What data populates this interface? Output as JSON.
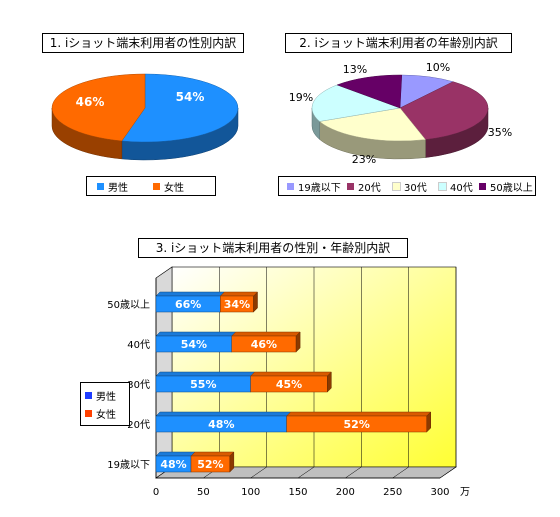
{
  "chart_data": [
    {
      "type": "pie",
      "title": "1. iショット端末利用者の性別内訳",
      "colors": {
        "male": "#1e90ff",
        "female": "#ff6a00"
      },
      "slices": [
        {
          "name": "男性",
          "value": 54,
          "label": "54%"
        },
        {
          "name": "女性",
          "value": 46,
          "label": "46%"
        }
      ],
      "legend": [
        "男性",
        "女性"
      ]
    },
    {
      "type": "pie",
      "title": "2. iショット端末利用者の年齢別内訳",
      "slices": [
        {
          "name": "19歳以下",
          "value": 10,
          "label": "10%",
          "color": "#9999ff"
        },
        {
          "name": "20代",
          "value": 35,
          "label": "35%",
          "color": "#993366"
        },
        {
          "name": "30代",
          "value": 23,
          "label": "23%",
          "color": "#ffffcc"
        },
        {
          "name": "40代",
          "value": 19,
          "label": "19%",
          "color": "#ccffff"
        },
        {
          "name": "50歳以上",
          "value": 13,
          "label": "13%",
          "color": "#660066"
        }
      ],
      "legend": [
        "19歳以下",
        "20代",
        "30代",
        "40代",
        "50歳以上"
      ]
    },
    {
      "type": "bar",
      "orientation": "horizontal",
      "stacked": true,
      "title": "3. iショット端末利用者の性別・年齢別内訳",
      "categories": [
        "50歳以上",
        "40代",
        "30代",
        "20代",
        "19歳以下"
      ],
      "series": [
        {
          "name": "男性",
          "values": [
            68,
            80,
            100,
            138,
            37
          ],
          "labels": [
            "66%",
            "54%",
            "55%",
            "48%",
            "48%"
          ],
          "color": "#1e90ff"
        },
        {
          "name": "女性",
          "values": [
            35,
            68,
            81,
            148,
            41
          ],
          "labels": [
            "34%",
            "46%",
            "45%",
            "52%",
            "52%"
          ],
          "color": "#ff6a00"
        }
      ],
      "xlim": [
        0,
        300
      ],
      "xticks": [
        0,
        50,
        100,
        150,
        200,
        250,
        300
      ],
      "xticklabels": [
        "0",
        "50",
        "100",
        "150",
        "200",
        "250",
        "300"
      ],
      "xunit": "万",
      "legend": [
        "男性",
        "女性"
      ],
      "legend_position": "left",
      "grid": true
    }
  ]
}
